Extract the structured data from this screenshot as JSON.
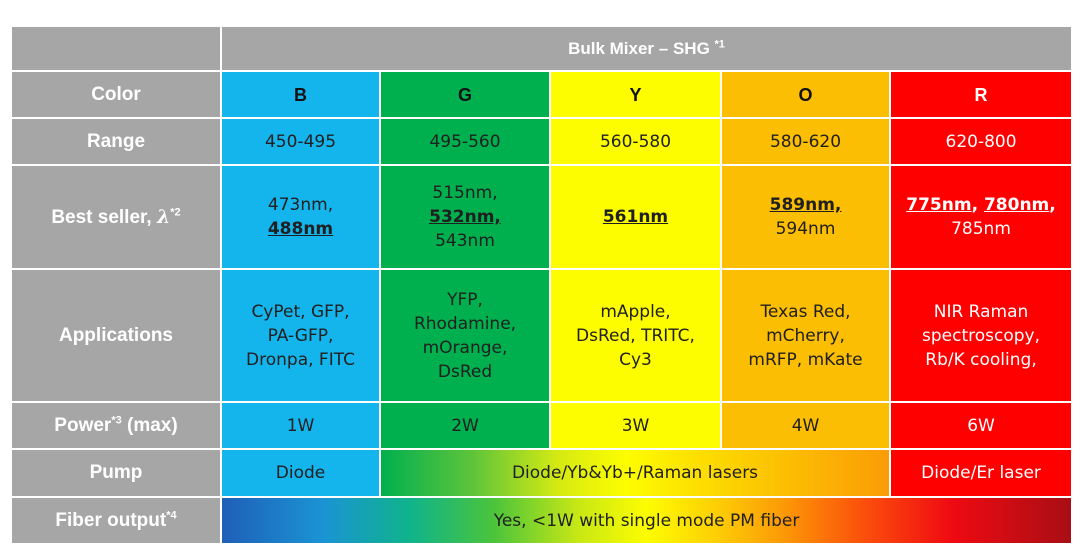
{
  "table": {
    "title": "Bulk Mixer – SHG",
    "title_sup": "*1",
    "row_labels": {
      "color": "Color",
      "range": "Range",
      "best_seller": "Best seller,",
      "best_seller_symbol": "λ",
      "best_seller_sup": "*2",
      "applications": "Applications",
      "power": "Power",
      "power_sup": "*3",
      "power_suffix": "(max)",
      "pump": "Pump",
      "fiber": "Fiber output",
      "fiber_sup": "*4"
    },
    "colors": [
      "B",
      "G",
      "Y",
      "O",
      "R"
    ],
    "ranges": [
      "450-495",
      "495-560",
      "560-580",
      "580-620",
      "620-800"
    ],
    "best_sellers": {
      "b": [
        "473nm,",
        "488nm"
      ],
      "g": [
        "515nm,",
        "532nm,",
        "543nm"
      ],
      "y": [
        "561nm"
      ],
      "o": [
        "589nm,",
        "594nm"
      ],
      "r_line1_a": "775nm",
      "r_line1_sep": ", ",
      "r_line1_b": "780nm",
      "r_line1_end": ",",
      "r_line2": "785nm"
    },
    "applications": {
      "b": [
        "CyPet, GFP,",
        "PA-GFP,",
        "Dronpa, FITC"
      ],
      "g": [
        "YFP,",
        "Rhodamine,",
        "mOrange,",
        "DsRed"
      ],
      "y": [
        "mApple,",
        "DsRed, TRITC,",
        "Cy3"
      ],
      "o": [
        "Texas Red,",
        "mCherry,",
        "mRFP, mKate"
      ],
      "r": [
        "NIR Raman",
        "spectroscopy,",
        "Rb/K cooling,"
      ]
    },
    "powers": [
      "1W",
      "2W",
      "3W",
      "4W",
      "6W"
    ],
    "pump": {
      "b": "Diode",
      "middle": "Diode/Yb&Yb+/Raman lasers",
      "r": "Diode/Er laser"
    },
    "fiber": "Yes, <1W with single mode PM fiber"
  },
  "colors_hex": {
    "header_gray": "#a6a6a6",
    "blue": "#14b4ec",
    "green": "#00b04f",
    "yellow": "#fdfd00",
    "orange": "#fcbe02",
    "red": "#fe0000"
  }
}
